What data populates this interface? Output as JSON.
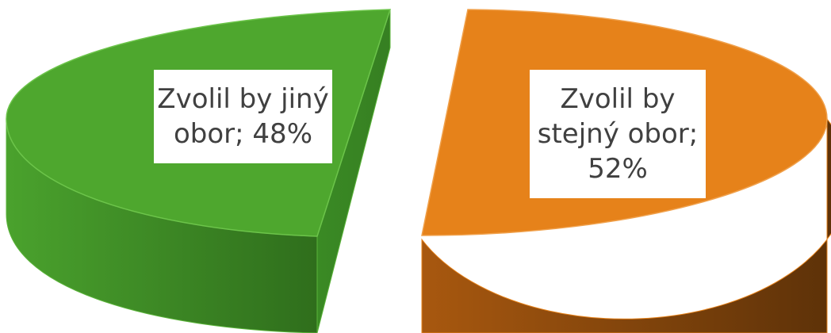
{
  "chart_data": {
    "type": "pie",
    "style": "3d-exploded",
    "title": "",
    "slices": [
      {
        "category": "Zvolil by jiný obor",
        "value": 48,
        "color": "#4ea72e",
        "label_lines": [
          "Zvolil by jiný",
          "obor; 48%"
        ]
      },
      {
        "category": "Zvolil by stejný obor",
        "value": 52,
        "color": "#e6821a",
        "label_lines": [
          "Zvolil by",
          "stejný obor;",
          "52%"
        ]
      }
    ],
    "legend": "none",
    "data_labels": "category; percent"
  }
}
